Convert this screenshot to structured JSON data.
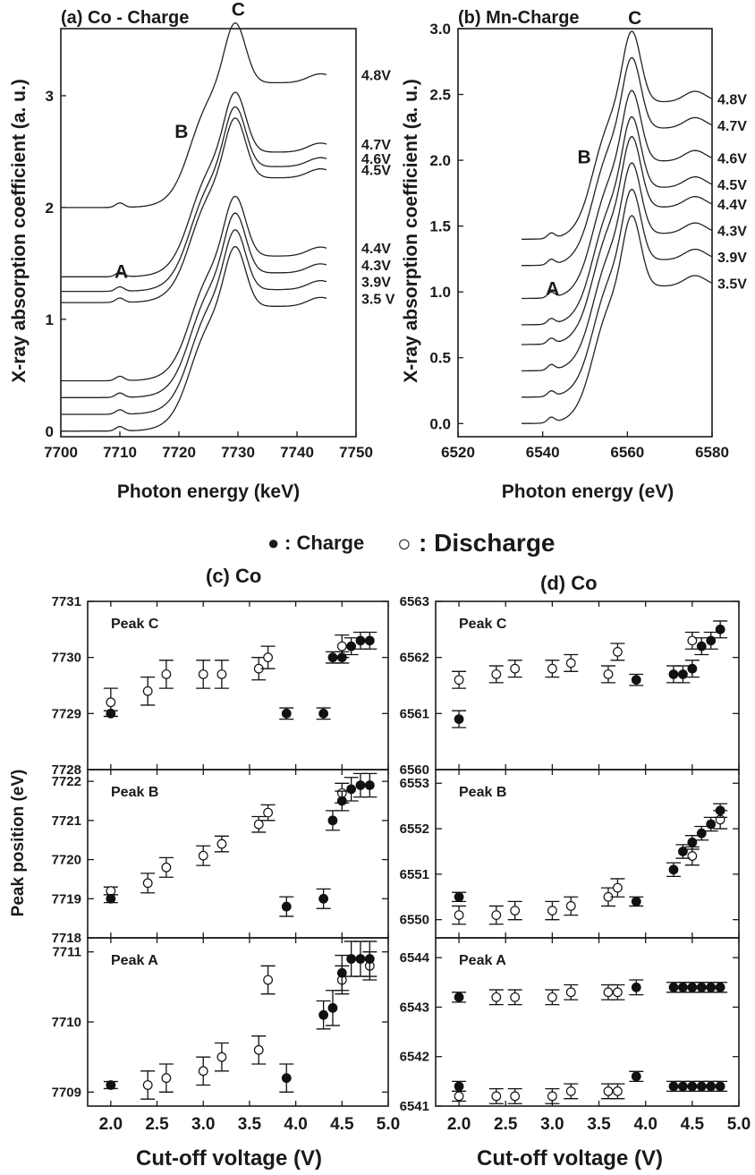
{
  "legend": {
    "charge_marker": "●",
    "charge_label": ": Charge",
    "discharge_marker": "○",
    "discharge_label": ": Discharge"
  },
  "chart_data": [
    {
      "id": "a",
      "type": "line",
      "title": "(a) Co - Charge",
      "xlabel": "Photon energy (keV)",
      "ylabel": "X-ray absorption coefficient (a. u.)",
      "xlim": [
        7700,
        7750
      ],
      "ylim": [
        -0.05,
        3.6
      ],
      "xticks": [
        "7700",
        "7710",
        "7720",
        "7730",
        "7740",
        "7750"
      ],
      "yticks": [
        "0",
        "1",
        "2",
        "3"
      ],
      "peak_labels": [
        "A",
        "B",
        "C"
      ],
      "edge": {
        "pre_peak_x": 7710,
        "edge_x": 7722,
        "white_line_x": 7729.5,
        "post_peak_x": 7744,
        "white_line_height": 1.55
      },
      "series": [
        {
          "name": "3.5 V",
          "offset": 0
        },
        {
          "name": "3.9V",
          "offset": 0.15
        },
        {
          "name": "4.3V",
          "offset": 0.3
        },
        {
          "name": "4.4V",
          "offset": 0.45
        },
        {
          "name": "4.5V",
          "offset": 1.15
        },
        {
          "name": "4.6V",
          "offset": 1.25
        },
        {
          "name": "4.7V",
          "offset": 1.38
        },
        {
          "name": "4.8V",
          "offset": 2.0
        }
      ]
    },
    {
      "id": "b",
      "type": "line",
      "title": "(b) Mn-Charge",
      "xlabel": "Photon energy (eV)",
      "ylabel": "X-ray absorption coefficient (a. u.)",
      "xlim": [
        6520,
        6580
      ],
      "ylim": [
        -0.1,
        3.0
      ],
      "xticks": [
        "6520",
        "6540",
        "6560",
        "6580"
      ],
      "yticks": [
        "0.0",
        "0.5",
        "1.0",
        "1.5",
        "2.0",
        "2.5",
        "3.0"
      ],
      "peak_labels": [
        "A",
        "B",
        "C"
      ],
      "edge": {
        "pre_peak_x": 6542,
        "edge_x": 6552,
        "white_line_x": 6561,
        "post_peak_x": 6576,
        "white_line_height": 1.45
      },
      "series": [
        {
          "name": "3.5V",
          "offset": 0
        },
        {
          "name": "3.9V",
          "offset": 0.2
        },
        {
          "name": "4.3V",
          "offset": 0.4
        },
        {
          "name": "4.4V",
          "offset": 0.6
        },
        {
          "name": "4.5V",
          "offset": 0.75
        },
        {
          "name": "4.6V",
          "offset": 0.95
        },
        {
          "name": "4.7V",
          "offset": 1.2
        },
        {
          "name": "4.8V",
          "offset": 1.4
        }
      ]
    },
    {
      "id": "c",
      "type": "scatter",
      "title": "(c) Co",
      "xlabel": "Cut-off voltage (V)",
      "ylabel": "Peak position (eV)",
      "xlim": [
        1.75,
        5.0
      ],
      "xticks": [
        "2.0",
        "2.5",
        "3.0",
        "3.5",
        "4.0",
        "4.5",
        "5.0"
      ],
      "panels": [
        {
          "label": "Peak C",
          "ylim": [
            7728,
            7731
          ],
          "yticks": [
            "7728",
            "7729",
            "7730",
            "7731"
          ],
          "charge": [
            [
              2.0,
              7729.0,
              0.05
            ],
            [
              3.9,
              7729.0,
              0.1
            ],
            [
              4.3,
              7729.0,
              0.1
            ],
            [
              4.4,
              7730.0,
              0.1
            ],
            [
              4.5,
              7730.0,
              0.1
            ],
            [
              4.6,
              7730.2,
              0.15
            ],
            [
              4.7,
              7730.3,
              0.15
            ],
            [
              4.8,
              7730.3,
              0.15
            ]
          ],
          "discharge": [
            [
              2.0,
              7729.2,
              0.25
            ],
            [
              2.4,
              7729.4,
              0.25
            ],
            [
              2.6,
              7729.7,
              0.25
            ],
            [
              3.0,
              7729.7,
              0.25
            ],
            [
              3.2,
              7729.7,
              0.25
            ],
            [
              3.6,
              7729.8,
              0.2
            ],
            [
              3.7,
              7730.0,
              0.2
            ],
            [
              4.5,
              7730.2,
              0.2
            ]
          ]
        },
        {
          "label": "Peak B",
          "ylim": [
            7718,
            7722.3
          ],
          "yticks": [
            "7718",
            "7719",
            "7720",
            "7721",
            "7722"
          ],
          "charge": [
            [
              2.0,
              7719.0,
              0.1
            ],
            [
              3.9,
              7718.8,
              0.25
            ],
            [
              4.3,
              7719.0,
              0.25
            ],
            [
              4.4,
              7721.0,
              0.25
            ],
            [
              4.5,
              7721.5,
              0.25
            ],
            [
              4.6,
              7721.8,
              0.3
            ],
            [
              4.7,
              7721.9,
              0.3
            ],
            [
              4.8,
              7721.9,
              0.3
            ]
          ],
          "discharge": [
            [
              2.0,
              7719.2,
              0.1
            ],
            [
              2.4,
              7719.4,
              0.25
            ],
            [
              2.6,
              7719.8,
              0.25
            ],
            [
              3.0,
              7720.1,
              0.25
            ],
            [
              3.2,
              7720.4,
              0.2
            ],
            [
              3.6,
              7720.9,
              0.2
            ],
            [
              3.7,
              7721.2,
              0.2
            ],
            [
              4.5,
              7721.7,
              0.25
            ]
          ]
        },
        {
          "label": "Peak A",
          "ylim": [
            7708.8,
            7711.2
          ],
          "yticks": [
            "7709",
            "7710",
            "7711"
          ],
          "charge": [
            [
              2.0,
              7709.1,
              0.05
            ],
            [
              3.9,
              7709.2,
              0.2
            ],
            [
              4.3,
              7710.1,
              0.2
            ],
            [
              4.4,
              7710.2,
              0.25
            ],
            [
              4.5,
              7710.7,
              0.25
            ],
            [
              4.6,
              7710.9,
              0.25
            ],
            [
              4.7,
              7710.9,
              0.25
            ],
            [
              4.8,
              7710.9,
              0.25
            ]
          ],
          "discharge": [
            [
              2.4,
              7709.1,
              0.2
            ],
            [
              2.6,
              7709.2,
              0.2
            ],
            [
              3.0,
              7709.3,
              0.2
            ],
            [
              3.2,
              7709.5,
              0.2
            ],
            [
              3.6,
              7709.6,
              0.2
            ],
            [
              3.7,
              7710.6,
              0.2
            ],
            [
              4.5,
              7710.6,
              0.2
            ],
            [
              4.8,
              7710.8,
              0.2
            ]
          ]
        }
      ]
    },
    {
      "id": "d",
      "type": "scatter",
      "title": "(d) Co",
      "xlabel": "Cut-off voltage (V)",
      "ylabel": "Peak position (eV)",
      "xlim": [
        1.75,
        5.0
      ],
      "xticks": [
        "2.0",
        "2.5",
        "3.0",
        "3.5",
        "4.0",
        "4.5",
        "5.0"
      ],
      "panels": [
        {
          "label": "Peak C",
          "ylim": [
            6560,
            6563
          ],
          "yticks": [
            "6560",
            "6561",
            "6562",
            "6563"
          ],
          "charge": [
            [
              2.0,
              6560.9,
              0.15
            ],
            [
              3.9,
              6561.6,
              0.1
            ],
            [
              4.3,
              6561.7,
              0.15
            ],
            [
              4.4,
              6561.7,
              0.15
            ],
            [
              4.5,
              6561.8,
              0.15
            ],
            [
              4.6,
              6562.2,
              0.15
            ],
            [
              4.7,
              6562.3,
              0.15
            ],
            [
              4.8,
              6562.5,
              0.15
            ]
          ],
          "discharge": [
            [
              2.0,
              6561.6,
              0.15
            ],
            [
              2.4,
              6561.7,
              0.15
            ],
            [
              2.6,
              6561.8,
              0.15
            ],
            [
              3.0,
              6561.8,
              0.15
            ],
            [
              3.2,
              6561.9,
              0.15
            ],
            [
              3.6,
              6561.7,
              0.15
            ],
            [
              3.7,
              6562.1,
              0.15
            ],
            [
              4.5,
              6562.3,
              0.15
            ]
          ]
        },
        {
          "label": "Peak B",
          "ylim": [
            6549.6,
            6553.3
          ],
          "yticks": [
            "6550",
            "6551",
            "6552",
            "6553"
          ],
          "charge": [
            [
              2.0,
              6550.5,
              0.1
            ],
            [
              3.9,
              6550.4,
              0.1
            ],
            [
              4.3,
              6551.1,
              0.15
            ],
            [
              4.4,
              6551.5,
              0.15
            ],
            [
              4.5,
              6551.7,
              0.15
            ],
            [
              4.6,
              6551.9,
              0.15
            ],
            [
              4.7,
              6552.1,
              0.15
            ],
            [
              4.8,
              6552.4,
              0.15
            ]
          ],
          "discharge": [
            [
              2.0,
              6550.1,
              0.2
            ],
            [
              2.4,
              6550.1,
              0.2
            ],
            [
              2.6,
              6550.2,
              0.2
            ],
            [
              3.0,
              6550.2,
              0.2
            ],
            [
              3.2,
              6550.3,
              0.2
            ],
            [
              3.6,
              6550.5,
              0.2
            ],
            [
              3.7,
              6550.7,
              0.2
            ],
            [
              4.5,
              6551.4,
              0.2
            ],
            [
              4.8,
              6552.2,
              0.2
            ]
          ]
        },
        {
          "label": "Peak A",
          "ylim": [
            6541,
            6544.4
          ],
          "yticks": [
            "6541",
            "6542",
            "6543",
            "6544"
          ],
          "charge": [
            [
              2.0,
              6543.2,
              0.1
            ],
            [
              3.9,
              6543.4,
              0.15
            ],
            [
              4.3,
              6543.4,
              0.1
            ],
            [
              4.4,
              6543.4,
              0.1
            ],
            [
              4.5,
              6543.4,
              0.1
            ],
            [
              4.6,
              6543.4,
              0.1
            ],
            [
              4.7,
              6543.4,
              0.1
            ],
            [
              4.8,
              6543.4,
              0.1
            ],
            [
              2.0,
              6541.4,
              0.1
            ],
            [
              3.9,
              6541.6,
              0.1
            ],
            [
              4.3,
              6541.4,
              0.1
            ],
            [
              4.4,
              6541.4,
              0.1
            ],
            [
              4.5,
              6541.4,
              0.1
            ],
            [
              4.6,
              6541.4,
              0.1
            ],
            [
              4.7,
              6541.4,
              0.1
            ],
            [
              4.8,
              6541.4,
              0.1
            ]
          ],
          "discharge": [
            [
              2.4,
              6543.2,
              0.15
            ],
            [
              2.6,
              6543.2,
              0.15
            ],
            [
              3.0,
              6543.2,
              0.15
            ],
            [
              3.2,
              6543.3,
              0.15
            ],
            [
              3.6,
              6543.3,
              0.15
            ],
            [
              3.7,
              6543.3,
              0.15
            ],
            [
              2.0,
              6541.2,
              0.1
            ],
            [
              2.4,
              6541.2,
              0.15
            ],
            [
              2.6,
              6541.2,
              0.15
            ],
            [
              3.0,
              6541.2,
              0.15
            ],
            [
              3.2,
              6541.3,
              0.15
            ],
            [
              3.6,
              6541.3,
              0.15
            ],
            [
              3.7,
              6541.3,
              0.15
            ]
          ]
        }
      ]
    }
  ]
}
